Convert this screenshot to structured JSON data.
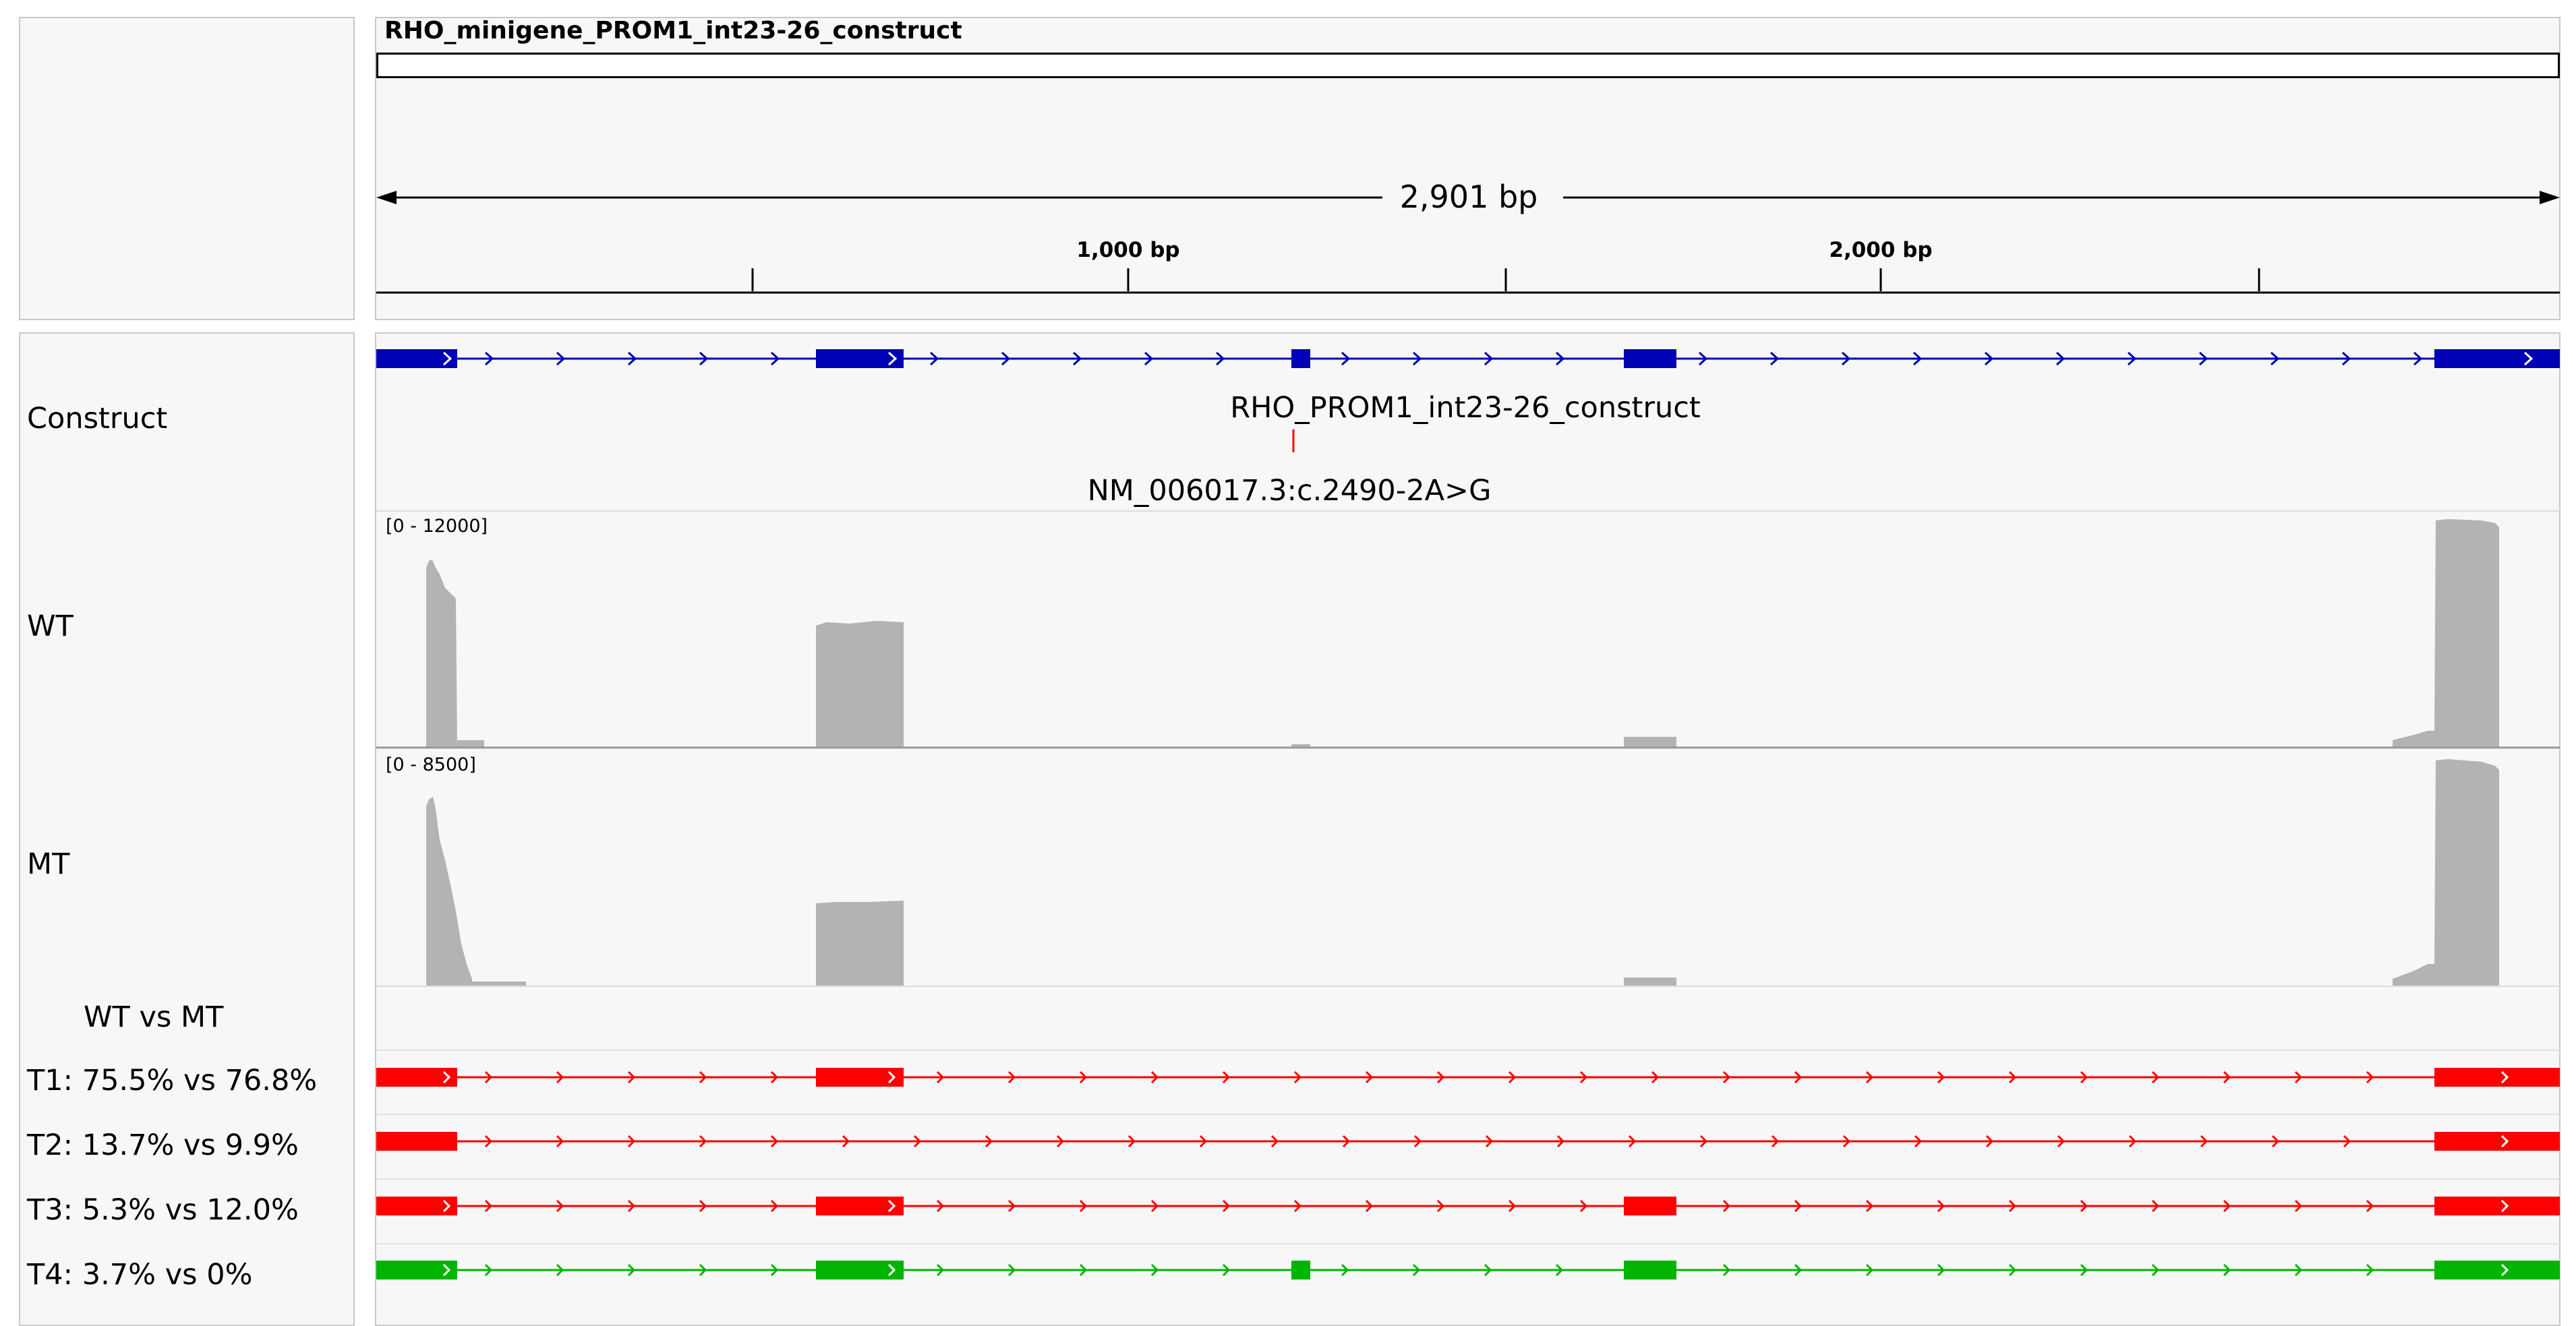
{
  "ruler": {
    "reference_name": "RHO_minigene_PROM1_int23-26_construct",
    "span_label": "2,901 bp",
    "tick_labels": [
      "1,000 bp",
      "2,000 bp"
    ]
  },
  "tracks": {
    "construct": {
      "name": "Construct",
      "feature_label": "RHO_PROM1_int23-26_construct",
      "variant_label": "NM_006017.3:c.2490-2A>G",
      "color": "#0000b4"
    },
    "wt": {
      "name": "WT",
      "range": "[0 - 12000]",
      "color": "#b3b3b3"
    },
    "mt": {
      "name": "MT",
      "range": "[0 - 8500]",
      "color": "#b3b3b3"
    },
    "comparison_header": "WT vs MT",
    "transcripts": [
      {
        "label": "T1: 75.5% vs 76.8%",
        "color": "#ff0000"
      },
      {
        "label": "T2: 13.7% vs 9.9%",
        "color": "#ff0000"
      },
      {
        "label": "T3: 5.3% vs 12.0%",
        "color": "#ff0000"
      },
      {
        "label": "T4: 3.7% vs 0%",
        "color": "#00b400"
      }
    ]
  }
}
